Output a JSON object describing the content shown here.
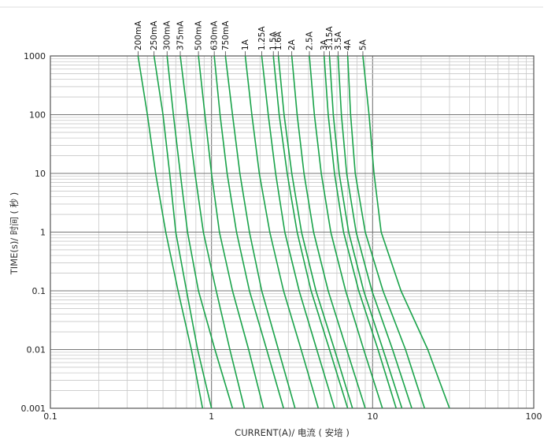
{
  "chart_data": {
    "type": "line",
    "title": "",
    "xlabel": "CURRENT(A)/ 电流 ( 安培 )",
    "ylabel": "TIME(s)/ 时间 ( 秒 )",
    "xscale": "log",
    "yscale": "log",
    "xlim": [
      0.1,
      100
    ],
    "ylim": [
      0.001,
      1000
    ],
    "grid": true,
    "legend": "labels above each curve at top",
    "x_tick_labels": [
      "0.1",
      "1",
      "10",
      "100"
    ],
    "y_tick_labels": [
      "0.001",
      "0.01",
      "0.1",
      "1",
      "10",
      "100",
      "1000"
    ],
    "line_color": "#1aa34a",
    "series": [
      {
        "name": "200mA",
        "x": [
          0.35,
          0.4,
          0.45,
          0.52,
          0.62,
          0.75,
          0.88
        ],
        "y": [
          1000,
          100,
          10,
          1,
          0.1,
          0.01,
          0.001
        ]
      },
      {
        "name": "250mA",
        "x": [
          0.44,
          0.5,
          0.55,
          0.6,
          0.7,
          0.82,
          1.0
        ],
        "y": [
          1000,
          100,
          10,
          1,
          0.1,
          0.01,
          0.001
        ]
      },
      {
        "name": "300mA",
        "x": [
          0.53,
          0.58,
          0.64,
          0.71,
          0.83,
          1.05,
          1.35
        ],
        "y": [
          1000,
          100,
          10,
          1,
          0.1,
          0.01,
          0.001
        ]
      },
      {
        "name": "375mA",
        "x": [
          0.64,
          0.71,
          0.79,
          0.89,
          1.07,
          1.3,
          1.6
        ],
        "y": [
          1000,
          100,
          10,
          1,
          0.1,
          0.01,
          0.001
        ]
      },
      {
        "name": "500mA",
        "x": [
          0.83,
          0.91,
          1.0,
          1.12,
          1.35,
          1.7,
          2.1
        ],
        "y": [
          1000,
          100,
          10,
          1,
          0.1,
          0.01,
          0.001
        ]
      },
      {
        "name": "630mA",
        "x": [
          1.04,
          1.13,
          1.25,
          1.43,
          1.72,
          2.2,
          2.8
        ],
        "y": [
          1000,
          100,
          10,
          1,
          0.1,
          0.01,
          0.001
        ]
      },
      {
        "name": "750mA",
        "x": [
          1.22,
          1.35,
          1.5,
          1.72,
          2.05,
          2.6,
          3.3
        ],
        "y": [
          1000,
          100,
          10,
          1,
          0.1,
          0.01,
          0.001
        ]
      },
      {
        "name": "1A",
        "x": [
          1.62,
          1.78,
          1.98,
          2.3,
          2.8,
          3.6,
          4.6
        ],
        "y": [
          1000,
          100,
          10,
          1,
          0.1,
          0.01,
          0.001
        ]
      },
      {
        "name": "1.25A",
        "x": [
          2.05,
          2.25,
          2.5,
          2.85,
          3.5,
          4.5,
          5.8
        ],
        "y": [
          1000,
          100,
          10,
          1,
          0.1,
          0.01,
          0.001
        ]
      },
      {
        "name": "1.5A",
        "x": [
          2.42,
          2.63,
          2.95,
          3.4,
          4.15,
          5.4,
          7.0
        ],
        "y": [
          1000,
          100,
          10,
          1,
          0.1,
          0.01,
          0.001
        ]
      },
      {
        "name": "1.6A",
        "x": [
          2.6,
          2.82,
          3.15,
          3.62,
          4.45,
          5.8,
          7.5
        ],
        "y": [
          1000,
          100,
          10,
          1,
          0.1,
          0.01,
          0.001
        ]
      },
      {
        "name": "2A",
        "x": [
          3.15,
          3.4,
          3.75,
          4.3,
          5.3,
          6.9,
          9.0
        ],
        "y": [
          1000,
          100,
          10,
          1,
          0.1,
          0.01,
          0.001
        ]
      },
      {
        "name": "2.5A",
        "x": [
          4.05,
          4.35,
          4.8,
          5.5,
          6.8,
          8.8,
          11.5
        ],
        "y": [
          1000,
          100,
          10,
          1,
          0.1,
          0.01,
          0.001
        ]
      },
      {
        "name": "3A",
        "x": [
          5.0,
          5.3,
          5.8,
          6.6,
          8.2,
          10.8,
          14.0
        ],
        "y": [
          1000,
          100,
          10,
          1,
          0.1,
          0.01,
          0.001
        ]
      },
      {
        "name": "3.15A",
        "x": [
          5.4,
          5.7,
          6.2,
          7.1,
          8.8,
          11.6,
          15.2
        ],
        "y": [
          1000,
          100,
          10,
          1,
          0.1,
          0.01,
          0.001
        ]
      },
      {
        "name": "3.5A",
        "x": [
          6.1,
          6.4,
          6.9,
          7.9,
          9.9,
          13.3,
          17.5
        ],
        "y": [
          1000,
          100,
          10,
          1,
          0.1,
          0.01,
          0.001
        ]
      },
      {
        "name": "4A",
        "x": [
          7.0,
          7.3,
          7.8,
          9.0,
          11.6,
          16.0,
          21.0
        ],
        "y": [
          1000,
          100,
          10,
          1,
          0.1,
          0.01,
          0.001
        ]
      },
      {
        "name": "5A",
        "x": [
          8.7,
          9.5,
          10.2,
          11.3,
          15.0,
          22.0,
          30.0
        ],
        "y": [
          1000,
          100,
          10,
          1,
          0.1,
          0.01,
          0.001
        ]
      }
    ]
  }
}
